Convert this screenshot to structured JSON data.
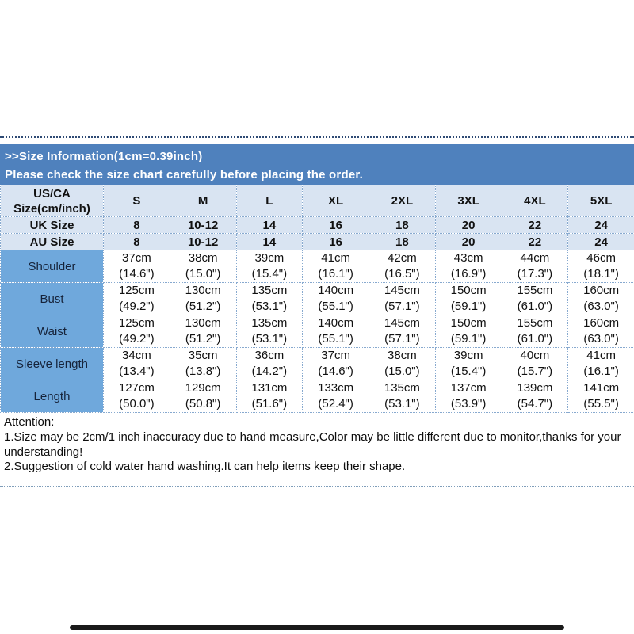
{
  "banner": {
    "line1": ">>Size Information(1cm=0.39inch)",
    "line2": "Please check the size chart carefully before placing the order."
  },
  "table": {
    "corner_header_line1": "US/CA",
    "corner_header_line2": "Size(cm/inch)",
    "size_columns": [
      "S",
      "M",
      "L",
      "XL",
      "2XL",
      "3XL",
      "4XL",
      "5XL"
    ],
    "size_rows": [
      {
        "label": "UK Size",
        "values": [
          "8",
          "10-12",
          "14",
          "16",
          "18",
          "20",
          "22",
          "24"
        ]
      },
      {
        "label": "AU Size",
        "values": [
          "8",
          "10-12",
          "14",
          "16",
          "18",
          "20",
          "22",
          "24"
        ]
      }
    ],
    "measurement_rows": [
      {
        "label": "Shoulder",
        "cm": [
          "37cm",
          "38cm",
          "39cm",
          "41cm",
          "42cm",
          "43cm",
          "44cm",
          "46cm"
        ],
        "inch": [
          "(14.6\")",
          "(15.0\")",
          "(15.4\")",
          "(16.1\")",
          "(16.5\")",
          "(16.9\")",
          "(17.3\")",
          "(18.1\")"
        ]
      },
      {
        "label": "Bust",
        "cm": [
          "125cm",
          "130cm",
          "135cm",
          "140cm",
          "145cm",
          "150cm",
          "155cm",
          "160cm"
        ],
        "inch": [
          "(49.2\")",
          "(51.2\")",
          "(53.1\")",
          "(55.1\")",
          "(57.1\")",
          "(59.1\")",
          "(61.0\")",
          "(63.0\")"
        ]
      },
      {
        "label": "Waist",
        "cm": [
          "125cm",
          "130cm",
          "135cm",
          "140cm",
          "145cm",
          "150cm",
          "155cm",
          "160cm"
        ],
        "inch": [
          "(49.2\")",
          "(51.2\")",
          "(53.1\")",
          "(55.1\")",
          "(57.1\")",
          "(59.1\")",
          "(61.0\")",
          "(63.0\")"
        ]
      },
      {
        "label": "Sleeve length",
        "cm": [
          "34cm",
          "35cm",
          "36cm",
          "37cm",
          "38cm",
          "39cm",
          "40cm",
          "41cm"
        ],
        "inch": [
          "(13.4\")",
          "(13.8\")",
          "(14.2\")",
          "(14.6\")",
          "(15.0\")",
          "(15.4\")",
          "(15.7\")",
          "(16.1\")"
        ]
      },
      {
        "label": "Length",
        "cm": [
          "127cm",
          "129cm",
          "131cm",
          "133cm",
          "135cm",
          "137cm",
          "139cm",
          "141cm"
        ],
        "inch": [
          "(50.0\")",
          "(50.8\")",
          "(51.6\")",
          "(52.4\")",
          "(53.1\")",
          "(53.9\")",
          "(54.7\")",
          "(55.5\")"
        ]
      }
    ]
  },
  "attention": {
    "title": "Attention:",
    "note1": "1.Size may be 2cm/1 inch inaccuracy due to hand measure,Color may be little different due to monitor,thanks for your understanding!",
    "note2": "2.Suggestion of cold water hand washing.It can help items keep their shape."
  },
  "colors": {
    "banner_bg": "#4f81bd",
    "header_row_bg": "#d9e4f2",
    "label_column_bg": "#6fa8dc",
    "cell_bg": "#ffffff",
    "grid_dotted": "#87a9cf",
    "banner_text": "#ffffff",
    "body_text": "#111111",
    "bottom_bar": "#1a1a1a"
  },
  "chart_data": {
    "type": "table",
    "title": "Size Information(1cm=0.39inch)",
    "columns": [
      "US/CA Size(cm/inch)",
      "S",
      "M",
      "L",
      "XL",
      "2XL",
      "3XL",
      "4XL",
      "5XL"
    ],
    "rows": [
      [
        "UK Size",
        "8",
        "10-12",
        "14",
        "16",
        "18",
        "20",
        "22",
        "24"
      ],
      [
        "AU Size",
        "8",
        "10-12",
        "14",
        "16",
        "18",
        "20",
        "22",
        "24"
      ],
      [
        "Shoulder",
        "37cm (14.6\")",
        "38cm (15.0\")",
        "39cm (15.4\")",
        "41cm (16.1\")",
        "42cm (16.5\")",
        "43cm (16.9\")",
        "44cm (17.3\")",
        "46cm (18.1\")"
      ],
      [
        "Bust",
        "125cm (49.2\")",
        "130cm (51.2\")",
        "135cm (53.1\")",
        "140cm (55.1\")",
        "145cm (57.1\")",
        "150cm (59.1\")",
        "155cm (61.0\")",
        "160cm (63.0\")"
      ],
      [
        "Waist",
        "125cm (49.2\")",
        "130cm (51.2\")",
        "135cm (53.1\")",
        "140cm (55.1\")",
        "145cm (57.1\")",
        "150cm (59.1\")",
        "155cm (61.0\")",
        "160cm (63.0\")"
      ],
      [
        "Sleeve length",
        "34cm (13.4\")",
        "35cm (13.8\")",
        "36cm (14.2\")",
        "37cm (14.6\")",
        "38cm (15.0\")",
        "39cm (15.4\")",
        "40cm (15.7\")",
        "41cm (16.1\")"
      ],
      [
        "Length",
        "127cm (50.0\")",
        "129cm (50.8\")",
        "131cm (51.6\")",
        "133cm (52.4\")",
        "135cm (53.1\")",
        "137cm (53.9\")",
        "139cm (54.7\")",
        "141cm (55.5\")"
      ]
    ]
  }
}
